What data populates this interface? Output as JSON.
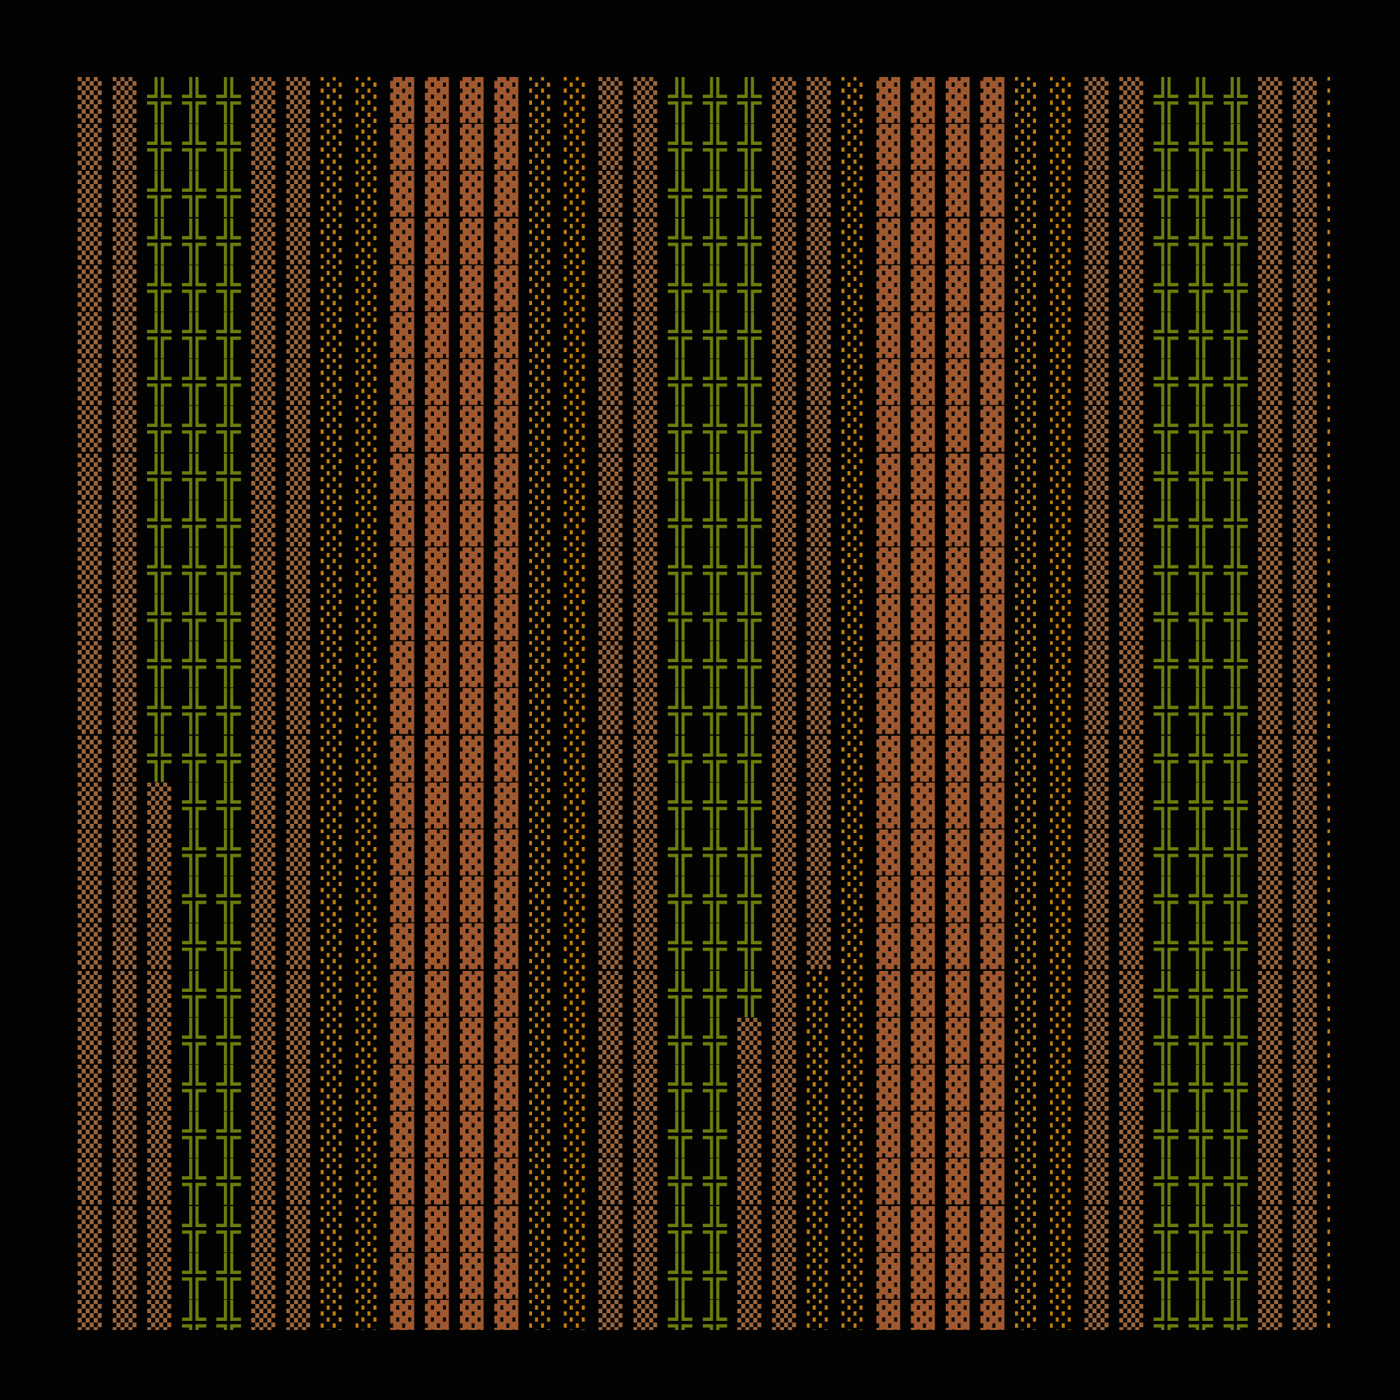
{
  "grid": {
    "rows": [
      "▒▒╬╬╬▒▒░░▓▓▓▓░░▒▒╬╬╬▒▒░▓▓▓▓░░▒▒╬╬╬▒▒░",
      "▒▒╬╬╬▒▒░░▓▓▓▓░░▒▒╬╬╬▒▒░▓▓▓▓░░▒▒╬╬╬▒▒░",
      "▒▒╬╬╬▒▒░░▓▓▓▓░░▒▒╬╬╬▒▒░▓▓▓▓░░▒▒╬╬╬▒▒░",
      "▒▒╬╬╬▒▒░░▓▓▓▓░░▒▒╬╬╬▒▒░▓▓▓▓░░▒▒╬╬╬▒▒░",
      "▒▒╬╬╬▒▒░░▓▓▓▓░░▒▒╬╬╬▒▒░▓▓▓▓░░▒▒╬╬╬▒▒░",
      "▒▒╬╬╬▒▒░░▓▓▓▓░░▒▒╬╬╬▒▒░▓▓▓▓░░▒▒╬╬╬▒▒░",
      "▒▒╬╬╬▒▒░░▓▓▓▓░░▒▒╬╬╬▒▒░▓▓▓▓░░▒▒╬╬╬▒▒░",
      "▒▒╬╬╬▒▒░░▓▓▓▓░░▒▒╬╬╬▒▒░▓▓▓▓░░▒▒╬╬╬▒▒░",
      "▒▒╬╬╬▒▒░░▓▓▓▓░░▒▒╬╬╬▒▒░▓▓▓▓░░▒▒╬╬╬▒▒░",
      "▒▒╬╬╬▒▒░░▓▓▓▓░░▒▒╬╬╬▒▒░▓▓▓▓░░▒▒╬╬╬▒▒░",
      "▒▒╬╬╬▒▒░░▓▓▓▓░░▒▒╬╬╬▒▒░▓▓▓▓░░▒▒╬╬╬▒▒░",
      "▒▒╬╬╬▒▒░░▓▓▓▓░░▒▒╬╬╬▒▒░▓▓▓▓░░▒▒╬╬╬▒▒░",
      "▒▒╬╬╬▒▒░░▓▓▓▓░░▒▒╬╬╬▒▒░▓▓▓▓░░▒▒╬╬╬▒▒░",
      "▒▒╬╬╬▒▒░░▓▓▓▓░░▒▒╬╬╬▒▒░▓▓▓▓░░▒▒╬╬╬▒▒░",
      "▒▒╬╬╬▒▒░░▓▓▓▓░░▒▒╬╬╬▒▒░▓▓▓▓░░▒▒╬╬╬▒▒░",
      "▒▒▒╬╬▒▒░░▓▓▓▓░░▒▒╬╬╬▒▒░▓▓▓▓░░▒▒╬╬╬▒▒░",
      "▒▒▒╬╬▒▒░░▓▓▓▓░░▒▒╬╬╬▒▒░▓▓▓▓░░▒▒╬╬╬▒▒░",
      "▒▒▒╬╬▒▒░░▓▓▓▓░░▒▒╬╬╬▒▒░▓▓▓▓░░▒▒╬╬╬▒▒░",
      "▒▒▒╬╬▒▒░░▓▓▓▓░░▒▒╬╬╬▒▒░▓▓▓▓░░▒▒╬╬╬▒▒░",
      "▒▒▒╬╬▒▒░░▓▓▓▓░░▒▒╬╬╬▒░░▓▓▓▓░░▒▒╬╬╬▒▒░",
      "▒▒▒╬╬▒▒░░▓▓▓▓░░▒▒╬╬▒▒░░▓▓▓▓░░▒▒╬╬╬▒▒░",
      "▒▒▒╬╬▒▒░░▓▓▓▓░░▒▒╬╬▒▒░░▓▓▓▓░░▒▒╬╬╬▒▒░",
      "▒▒▒╬╬▒▒░░▓▓▓▓░░▒▒╬╬▒▒░░▓▓▓▓░░▒▒╬╬╬▒▒░",
      "▒▒▒╬╬▒▒░░▓▓▓▓░░▒▒╬╬▒▒░░▓▓▓▓░░▒▒╬╬╬▒▒░",
      "▒▒▒╬╬▒▒░░▓▓▓▓░░▒▒╬╬▒▒░░▓▓▓▓░░▒▒╬╬╬▒▒░",
      "▒▒▒╬╬▒▒░░▓▓▓▓░░▒▒╬╬▒▒░░▓▓▓▓░░▒▒╬╬╬▒▒░",
      "▒▒▒╬╬▒▒░░▓▓▓▓░░▒▒╬╬▒▒░░▓▓▓▓░░▒▒╬╬╬▒▒░"
    ]
  },
  "colors": {
    "background": "#030303",
    "▓": "#a0582f",
    "▒": "#9c663c",
    "░": "#c47f0c",
    "╬": "#6b7d0c"
  }
}
